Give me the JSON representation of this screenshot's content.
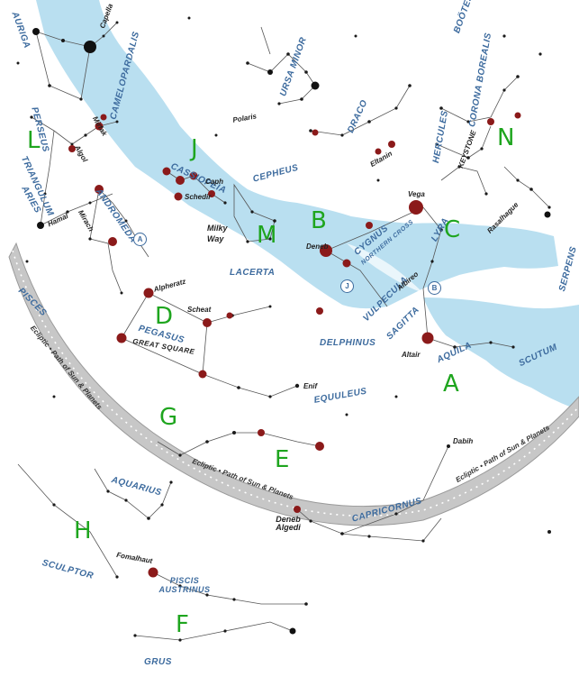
{
  "colors": {
    "milky_way": "#b9dff0",
    "ecliptic_band": "#c7c7c7",
    "constellation_text": "#3d6b9e",
    "letter_labels": "#1ea51e",
    "bright_star": "#8b1a1a",
    "star": "#1a1a1a"
  },
  "milky_way_label": "Milky Way",
  "ecliptic_labels": [
    "Ecliptic • Path of Sun & Planets",
    "Ecliptic • Path of Sun & Planets",
    "Ecliptic • Path of Sun & Planets",
    "Ecliptic • Path of Sun & Planets"
  ],
  "constellations": {
    "auriga": "AURIGA",
    "camelopardalis": "CAMELOPARDALIS",
    "perseus": "PERSEUS",
    "triangulum": "TRIANGULUM",
    "aries": "ARIES",
    "andromeda": "ANDROMEDA",
    "cassiopeia": "CASSIOPEIA",
    "cepheus": "CEPHEUS",
    "ursa_minor": "URSA MINOR",
    "draco": "DRACO",
    "hercules": "HERCULES",
    "corona_borealis": "CORONA BOREALIS",
    "bootes": "BOÖTES",
    "cygnus": "CYGNUS",
    "northern_cross": "NORTHERN CROSS",
    "lyra": "LYRA",
    "lacerta": "LACERTA",
    "vulpecula": "VULPECULA",
    "sagitta": "SAGITTA",
    "delphinus": "DELPHINUS",
    "aquila": "AQUILA",
    "scutum": "SCUTUM",
    "serpens": "SERPENS",
    "pisces": "PISCES",
    "pegasus": "PEGASUS",
    "great_square": "GREAT SQUARE",
    "equuleus": "EQUULEUS",
    "aquarius": "AQUARIUS",
    "capricornus": "CAPRICORNUS",
    "sculptor": "SCULPTOR",
    "piscis_austrinus": "PISCIS AUSTRINUS",
    "grus": "GRUS"
  },
  "stars": {
    "capella": "Capella",
    "polaris": "Polaris",
    "algol": "Algol",
    "mirfak": "Mirfak",
    "hamal": "Hamal",
    "mirach": "Mirach",
    "schedir": "Schedir",
    "caph": "Caph",
    "eltanin": "Eltanin",
    "vega": "Vega",
    "deneb": "Deneb",
    "albireo": "Albireo",
    "altair": "Altair",
    "rasalhague": "Rasalhague",
    "keystone": "KEYSTONE",
    "alpheratz": "Alpheratz",
    "scheat": "Scheat",
    "enif": "Enif",
    "dabih": "Dabih",
    "deneb_algedi": "Deneb Algedi",
    "fomalhaut": "Fomalhaut"
  },
  "markers": [
    "A",
    "B",
    "J"
  ],
  "region_labels": {
    "L": "L",
    "J": "J",
    "N": "N",
    "M": "M",
    "B": "B",
    "C": "C",
    "D": "D",
    "A": "A",
    "G": "G",
    "E": "E",
    "H": "H",
    "F": "F"
  }
}
